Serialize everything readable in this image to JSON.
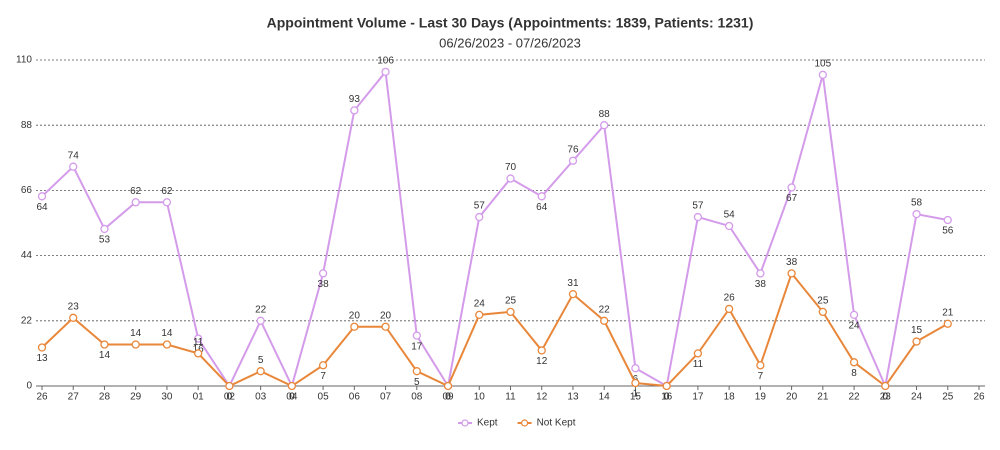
{
  "chart_data": {
    "type": "line",
    "title": "Appointment Volume - Last 30 Days (Appointments: 1839, Patients: 1231)",
    "subtitle": "06/26/2023 - 07/26/2023",
    "categories": [
      "26",
      "27",
      "28",
      "29",
      "30",
      "01",
      "02",
      "03",
      "04",
      "05",
      "06",
      "07",
      "08",
      "09",
      "10",
      "11",
      "12",
      "13",
      "14",
      "15",
      "16",
      "17",
      "18",
      "19",
      "20",
      "21",
      "22",
      "23",
      "24",
      "25",
      "26"
    ],
    "series": [
      {
        "name": "Kept",
        "color": "#d49bea",
        "values": [
          64,
          74,
          53,
          62,
          62,
          16,
          0,
          22,
          0,
          38,
          93,
          106,
          17,
          0,
          57,
          70,
          64,
          76,
          88,
          6,
          0,
          57,
          54,
          38,
          67,
          105,
          24,
          0,
          58,
          56,
          null
        ]
      },
      {
        "name": "Not Kept",
        "color": "#e8873a",
        "values": [
          13,
          23,
          14,
          14,
          14,
          11,
          0,
          5,
          0,
          7,
          20,
          20,
          5,
          0,
          24,
          25,
          12,
          31,
          22,
          1,
          0,
          11,
          26,
          7,
          38,
          25,
          8,
          0,
          15,
          21,
          null
        ]
      }
    ],
    "ylim": [
      0,
      110
    ],
    "yticks": [
      0,
      22,
      44,
      66,
      88,
      110
    ],
    "grid": true,
    "legend": "bottom"
  }
}
